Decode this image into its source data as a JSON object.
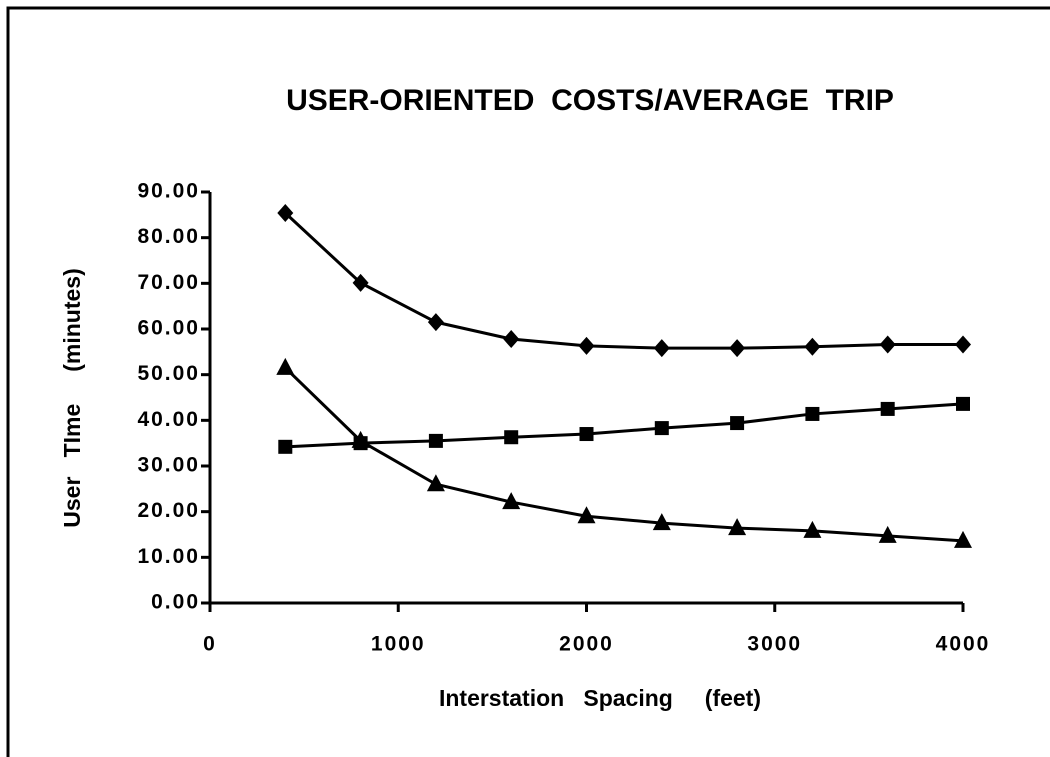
{
  "chart_data": {
    "type": "line",
    "title": "USER-ORIENTED  COSTS/AVERAGE  TRIP",
    "x_label": "Interstation   Spacing     (feet)",
    "y_label": "User   TIme     (minutes)",
    "x": [
      400,
      800,
      1200,
      1600,
      2000,
      2400,
      2800,
      3200,
      3600,
      4000
    ],
    "series": [
      {
        "marker": "diamond",
        "color": "#000000",
        "values": [
          85.4,
          70.1,
          61.5,
          57.8,
          56.3,
          55.8,
          55.8,
          56.1,
          56.6,
          56.6
        ]
      },
      {
        "marker": "square",
        "color": "#000000",
        "values": [
          34.2,
          35.0,
          35.5,
          36.3,
          37.0,
          38.3,
          39.4,
          41.4,
          42.5,
          43.6
        ]
      },
      {
        "marker": "triangle",
        "color": "#000000",
        "values": [
          51.5,
          35.5,
          26.0,
          22.1,
          19.0,
          17.5,
          16.4,
          15.8,
          14.7,
          13.6
        ]
      }
    ],
    "xlim": [
      0,
      4000
    ],
    "xticks": [
      0,
      1000,
      2000,
      3000,
      4000
    ],
    "ylim": [
      0,
      90
    ],
    "yticks": [
      {
        "value": 0,
        "label": "0.00"
      },
      {
        "value": 10,
        "label": "10.00"
      },
      {
        "value": 20,
        "label": "20.00"
      },
      {
        "value": 30,
        "label": "30.00"
      },
      {
        "value": 40,
        "label": "40.00"
      },
      {
        "value": 50,
        "label": "50.00"
      },
      {
        "value": 60,
        "label": "60.00"
      },
      {
        "value": 70,
        "label": "70.00"
      },
      {
        "value": 80,
        "label": "80.00"
      },
      {
        "value": 90,
        "label": "90.00"
      }
    ],
    "grid": false
  }
}
